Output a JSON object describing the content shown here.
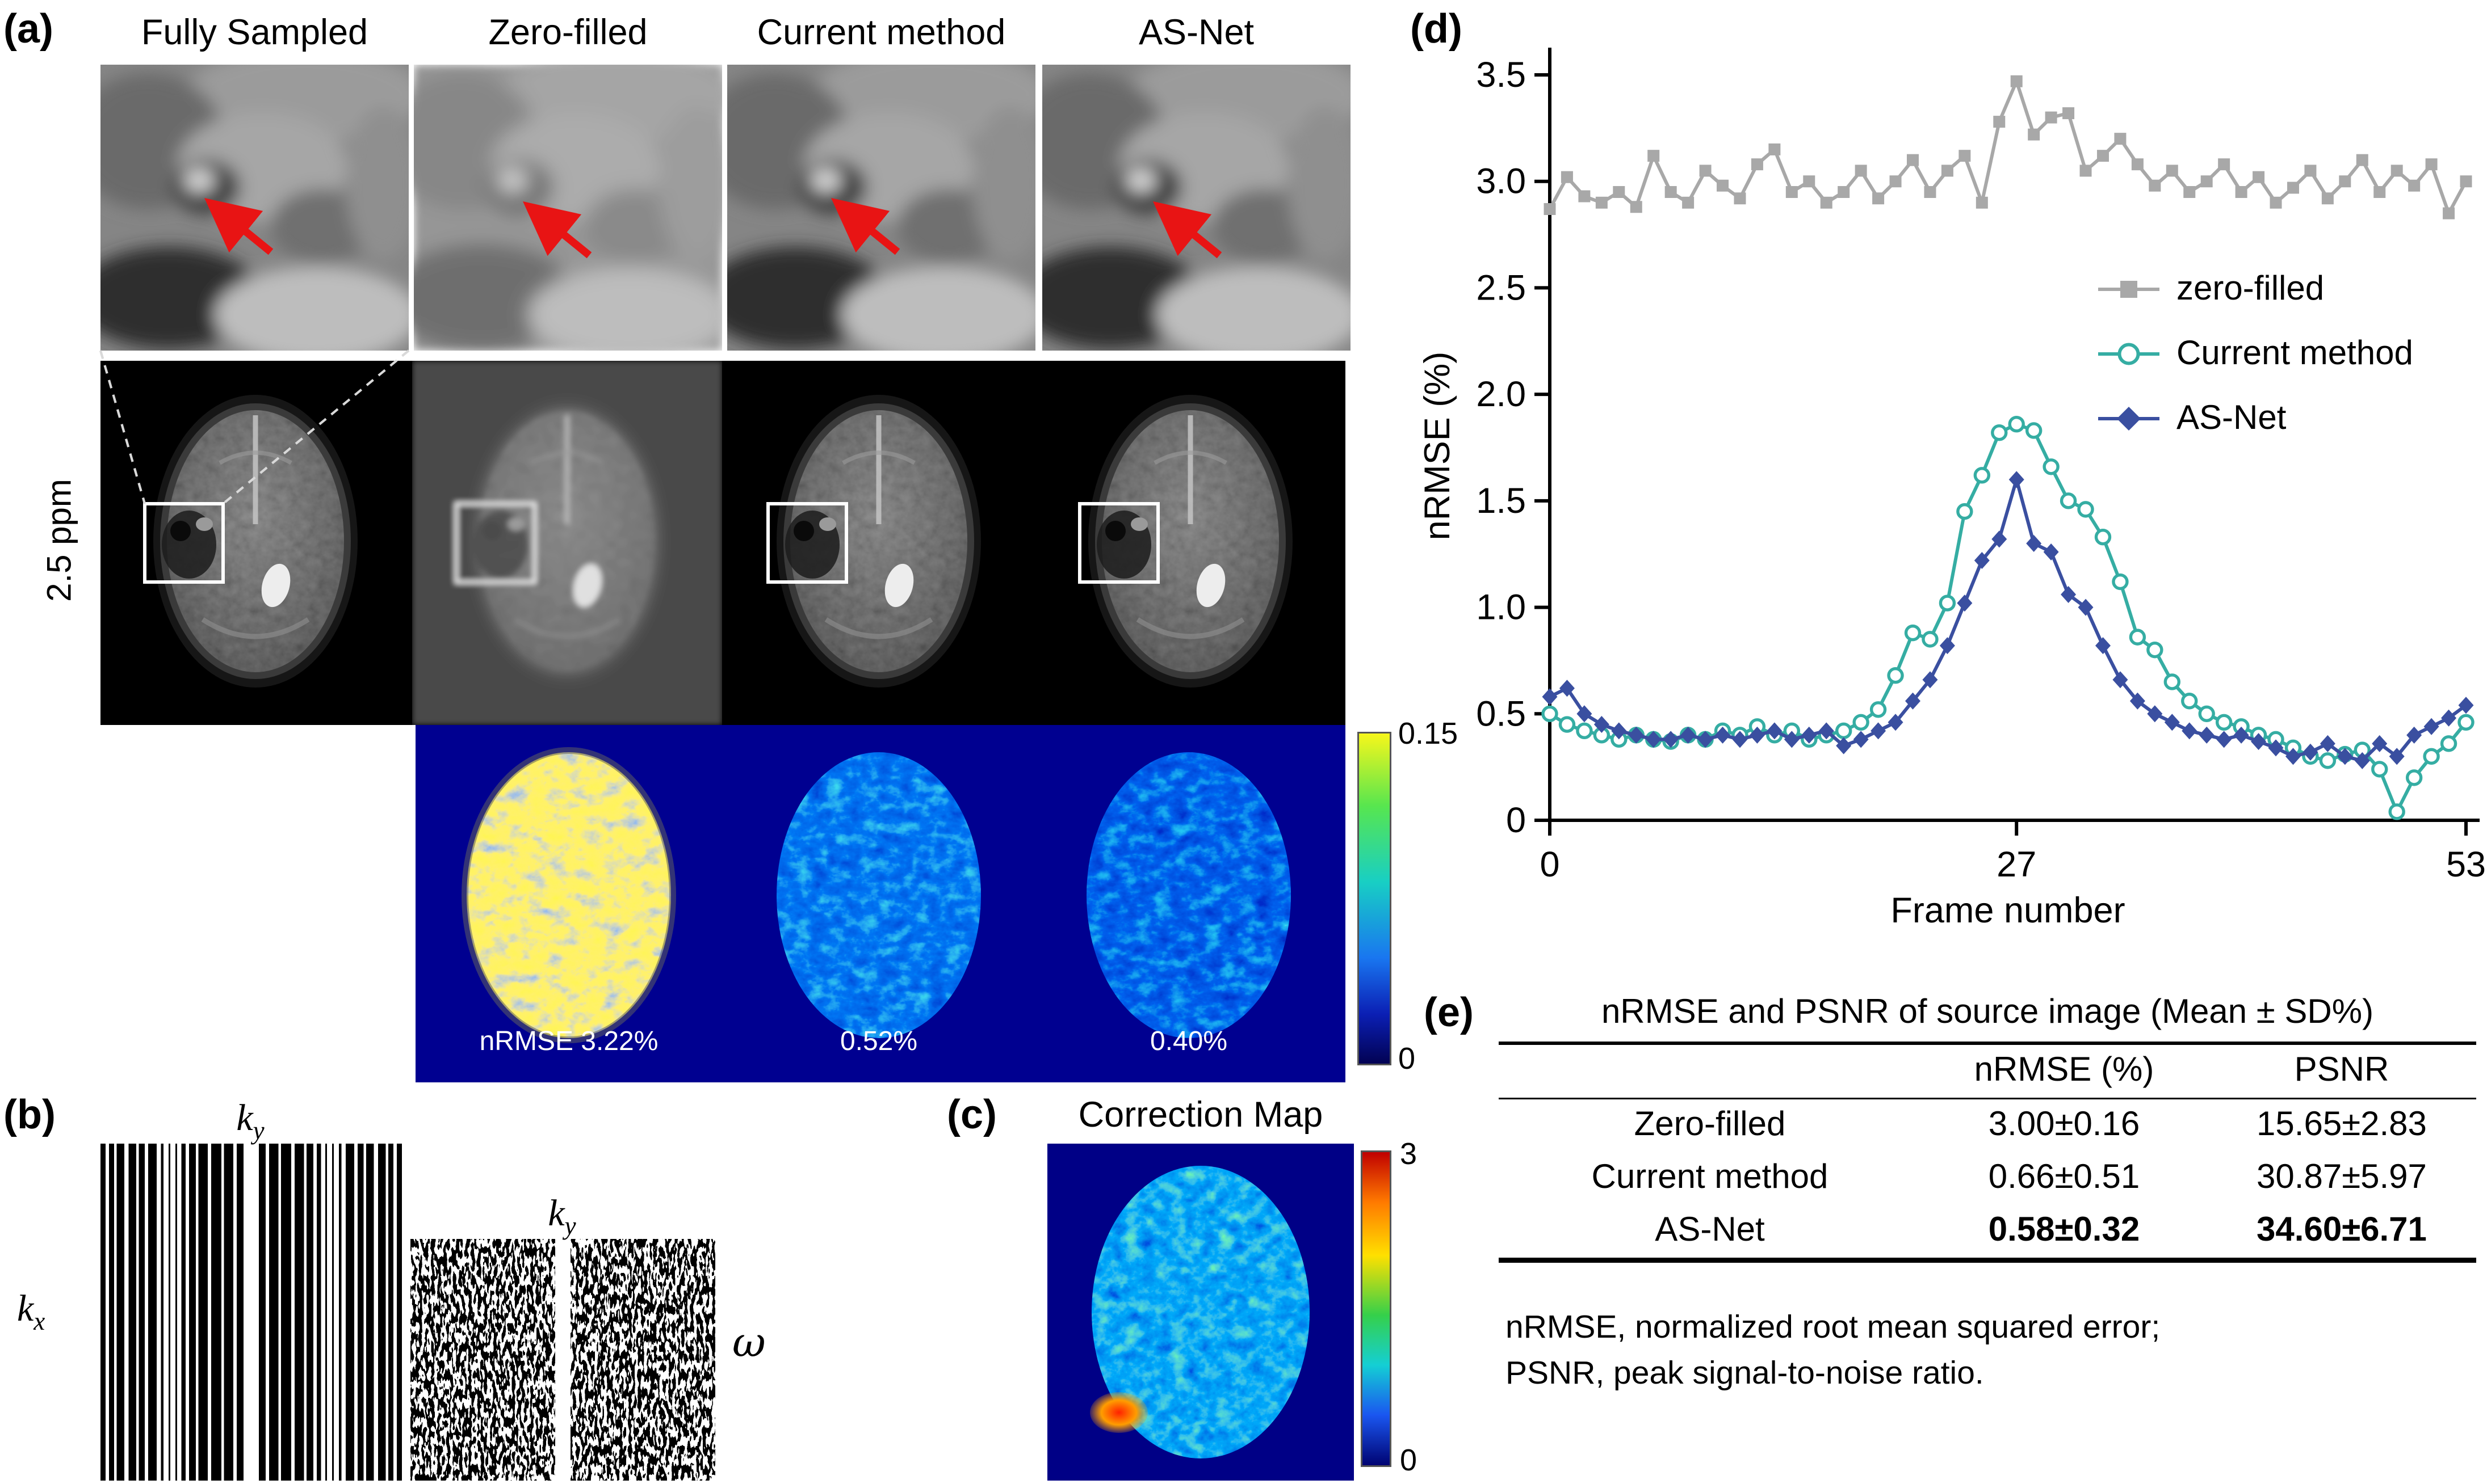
{
  "panel_a": {
    "label": "(a)",
    "method_titles": [
      "Fully Sampled",
      "Zero-filled",
      "Current method",
      "AS-Net"
    ],
    "row_label": "2.5 ppm",
    "error_labels": [
      "nRMSE 3.22%",
      "0.52%",
      "0.40%"
    ],
    "colorbar": {
      "max": "0.15",
      "min": "0"
    }
  },
  "panel_b": {
    "label": "(b)",
    "k_base": "k",
    "ky_sub": "y",
    "kx_sub": "x",
    "omega": "ω"
  },
  "panel_c": {
    "label": "(c)",
    "title": "Correction Map",
    "colorbar": {
      "max": "3",
      "min": "0"
    }
  },
  "panel_d": {
    "label": "(d)"
  },
  "chart_data": {
    "type": "line",
    "title": "",
    "xlabel": "Frame number",
    "ylabel": "nRMSE (%)",
    "xlim": [
      0,
      53
    ],
    "ylim": [
      0,
      3.5
    ],
    "xticks": [
      0,
      27,
      53
    ],
    "yticks": [
      0,
      0.5,
      1.0,
      1.5,
      2.0,
      2.5,
      3.0,
      3.5
    ],
    "ytick_labels": [
      "0",
      "0.5",
      "1.0",
      "1.5",
      "2.0",
      "2.5",
      "3.0",
      "3.5"
    ],
    "x_start": 0,
    "x_step": 1,
    "grid": false,
    "legend_position": "inside-right",
    "series": [
      {
        "name": "zero-filled",
        "marker": "square",
        "color": "#a8a8a8",
        "values": [
          2.87,
          3.02,
          2.93,
          2.9,
          2.95,
          2.88,
          3.12,
          2.95,
          2.9,
          3.05,
          2.98,
          2.92,
          3.08,
          3.15,
          2.95,
          3.0,
          2.9,
          2.95,
          3.05,
          2.92,
          3.0,
          3.1,
          2.95,
          3.05,
          3.12,
          2.9,
          3.28,
          3.47,
          3.22,
          3.3,
          3.32,
          3.05,
          3.12,
          3.2,
          3.08,
          2.98,
          3.05,
          2.95,
          3.0,
          3.08,
          2.95,
          3.02,
          2.9,
          2.97,
          3.05,
          2.92,
          3.0,
          3.1,
          2.95,
          3.05,
          2.98,
          3.08,
          2.85,
          3.0
        ]
      },
      {
        "name": "Current method",
        "marker": "circle-open",
        "color": "#35ada3",
        "values": [
          0.5,
          0.45,
          0.42,
          0.4,
          0.38,
          0.4,
          0.38,
          0.37,
          0.4,
          0.38,
          0.42,
          0.4,
          0.44,
          0.4,
          0.42,
          0.38,
          0.4,
          0.42,
          0.46,
          0.52,
          0.68,
          0.88,
          0.85,
          1.02,
          1.45,
          1.62,
          1.82,
          1.86,
          1.83,
          1.66,
          1.5,
          1.46,
          1.33,
          1.12,
          0.86,
          0.8,
          0.65,
          0.56,
          0.5,
          0.46,
          0.44,
          0.4,
          0.38,
          0.34,
          0.3,
          0.28,
          0.31,
          0.33,
          0.24,
          0.04,
          0.2,
          0.3,
          0.36,
          0.46
        ]
      },
      {
        "name": "AS-Net",
        "marker": "diamond",
        "color": "#3a4fa0",
        "values": [
          0.58,
          0.62,
          0.5,
          0.45,
          0.42,
          0.4,
          0.38,
          0.38,
          0.4,
          0.38,
          0.4,
          0.38,
          0.4,
          0.42,
          0.38,
          0.4,
          0.42,
          0.35,
          0.38,
          0.42,
          0.46,
          0.56,
          0.66,
          0.82,
          1.02,
          1.22,
          1.32,
          1.6,
          1.3,
          1.26,
          1.06,
          1.0,
          0.82,
          0.66,
          0.56,
          0.5,
          0.46,
          0.42,
          0.4,
          0.38,
          0.4,
          0.37,
          0.34,
          0.3,
          0.32,
          0.36,
          0.3,
          0.28,
          0.36,
          0.3,
          0.4,
          0.44,
          0.48,
          0.54
        ]
      }
    ]
  },
  "panel_e": {
    "label": "(e)",
    "table": {
      "title": "nRMSE and PSNR of source image (Mean ± SD%)",
      "columns": [
        "",
        "nRMSE (%)",
        "PSNR"
      ],
      "rows": [
        {
          "label": "Zero-filled",
          "nrmse": "3.00±0.16",
          "psnr": "15.65±2.83",
          "bold": false
        },
        {
          "label": "Current method",
          "nrmse": "0.66±0.51",
          "psnr": "30.87±5.97",
          "bold": false
        },
        {
          "label": "AS-Net",
          "nrmse": "0.58±0.32",
          "psnr": "34.60±6.71",
          "bold": true
        }
      ],
      "footnote_lines": [
        "nRMSE, normalized root mean squared error;",
        "PSNR, peak signal-to-noise ratio."
      ]
    }
  },
  "colors": {
    "error_panel_bg": "#000090",
    "arrow_red": "#e81414",
    "roi_box": "#ffffff"
  }
}
